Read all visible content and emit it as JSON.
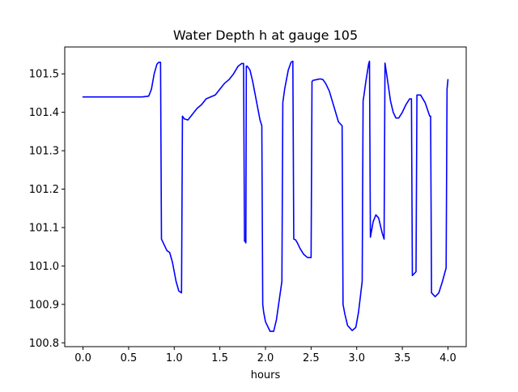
{
  "chart_data": {
    "type": "line",
    "title": "Water Depth h at gauge 105",
    "xlabel": "hours",
    "ylabel": "",
    "xlim": [
      -0.2,
      4.2
    ],
    "ylim": [
      100.79,
      101.57
    ],
    "xticks": [
      0.0,
      0.5,
      1.0,
      1.5,
      2.0,
      2.5,
      3.0,
      3.5,
      4.0
    ],
    "xtick_labels": [
      "0.0",
      "0.5",
      "1.0",
      "1.5",
      "2.0",
      "2.5",
      "3.0",
      "3.5",
      "4.0"
    ],
    "yticks": [
      100.8,
      100.9,
      101.0,
      101.1,
      101.2,
      101.3,
      101.4,
      101.5
    ],
    "ytick_labels": [
      "100.8",
      "100.9",
      "101.0",
      "101.1",
      "101.2",
      "101.3",
      "101.4",
      "101.5"
    ],
    "grid": false,
    "series": [
      {
        "color": "#0000ff",
        "x": [
          0.0,
          0.3,
          0.5,
          0.65,
          0.72,
          0.75,
          0.78,
          0.81,
          0.83,
          0.85,
          0.86,
          0.88,
          0.92,
          0.95,
          0.98,
          1.02,
          1.05,
          1.08,
          1.09,
          1.11,
          1.15,
          1.2,
          1.25,
          1.3,
          1.35,
          1.4,
          1.45,
          1.5,
          1.55,
          1.6,
          1.65,
          1.7,
          1.74,
          1.76,
          1.77,
          1.78,
          1.785,
          1.79,
          1.8,
          1.83,
          1.86,
          1.9,
          1.94,
          1.96,
          1.97,
          1.98,
          2.0,
          2.05,
          2.09,
          2.12,
          2.15,
          2.18,
          2.19,
          2.21,
          2.25,
          2.28,
          2.3,
          2.31,
          2.33,
          2.35,
          2.38,
          2.42,
          2.46,
          2.5,
          2.51,
          2.52,
          2.56,
          2.6,
          2.63,
          2.66,
          2.7,
          2.75,
          2.8,
          2.84,
          2.85,
          2.87,
          2.9,
          2.95,
          2.99,
          3.02,
          3.06,
          3.07,
          3.08,
          3.1,
          3.13,
          3.14,
          3.15,
          3.18,
          3.21,
          3.24,
          3.28,
          3.3,
          3.31,
          3.34,
          3.37,
          3.4,
          3.43,
          3.46,
          3.5,
          3.54,
          3.58,
          3.6,
          3.61,
          3.63,
          3.65,
          3.66,
          3.7,
          3.75,
          3.8,
          3.81,
          3.82,
          3.86,
          3.9,
          3.94,
          3.98,
          3.99,
          4.0
        ],
        "y": [
          101.44,
          101.44,
          101.44,
          101.44,
          101.442,
          101.46,
          101.5,
          101.525,
          101.53,
          101.53,
          101.07,
          101.06,
          101.04,
          101.035,
          101.01,
          100.96,
          100.935,
          100.93,
          101.39,
          101.383,
          101.38,
          101.395,
          101.41,
          101.42,
          101.435,
          101.44,
          101.445,
          101.46,
          101.475,
          101.485,
          101.5,
          101.52,
          101.527,
          101.527,
          101.065,
          101.063,
          101.06,
          101.52,
          101.52,
          101.51,
          101.48,
          101.43,
          101.38,
          101.365,
          100.9,
          100.88,
          100.855,
          100.83,
          100.83,
          100.86,
          100.91,
          100.96,
          101.425,
          101.46,
          101.51,
          101.53,
          101.533,
          101.07,
          101.068,
          101.06,
          101.045,
          101.03,
          101.022,
          101.022,
          101.48,
          101.483,
          101.485,
          101.487,
          101.485,
          101.475,
          101.455,
          101.415,
          101.375,
          101.365,
          100.9,
          100.875,
          100.845,
          100.832,
          100.84,
          100.88,
          100.96,
          101.43,
          101.445,
          101.48,
          101.525,
          101.533,
          101.075,
          101.115,
          101.133,
          101.125,
          101.085,
          101.07,
          101.528,
          101.48,
          101.43,
          101.4,
          101.385,
          101.385,
          101.4,
          101.42,
          101.435,
          101.435,
          100.975,
          100.98,
          100.985,
          101.445,
          101.445,
          101.425,
          101.39,
          101.39,
          100.93,
          100.92,
          100.93,
          100.96,
          100.995,
          101.46,
          101.485
        ]
      }
    ]
  }
}
